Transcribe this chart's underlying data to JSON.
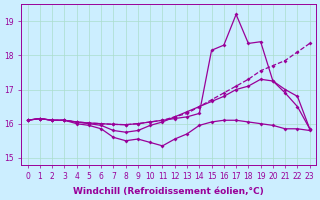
{
  "xlabel": "Windchill (Refroidissement éolien,°C)",
  "ylabel": "",
  "background_color": "#cceeff",
  "line_color": "#990099",
  "grid_color": "#aaddcc",
  "xlim": [
    -0.5,
    23.5
  ],
  "ylim": [
    14.8,
    19.5
  ],
  "xticks": [
    0,
    1,
    2,
    3,
    4,
    5,
    6,
    7,
    8,
    9,
    10,
    11,
    12,
    13,
    14,
    15,
    16,
    17,
    18,
    19,
    20,
    21,
    22,
    23
  ],
  "yticks": [
    15,
    16,
    17,
    18,
    19
  ],
  "line1_x": [
    0,
    1,
    2,
    3,
    4,
    5,
    6,
    7,
    8,
    9,
    10,
    11,
    12,
    13,
    14,
    15,
    16,
    17,
    18,
    19,
    20,
    21,
    22,
    23
  ],
  "line1_y": [
    16.1,
    16.15,
    16.1,
    16.1,
    16.0,
    15.95,
    15.85,
    15.6,
    15.5,
    15.55,
    15.45,
    15.35,
    15.55,
    15.7,
    15.95,
    16.05,
    16.1,
    16.1,
    16.05,
    16.0,
    15.95,
    15.85,
    15.85,
    15.8
  ],
  "line2_x": [
    0,
    1,
    2,
    3,
    4,
    5,
    6,
    7,
    8,
    9,
    10,
    11,
    12,
    13,
    14,
    15,
    16,
    17,
    18,
    19,
    20,
    21,
    22,
    23
  ],
  "line2_y": [
    16.1,
    16.15,
    16.1,
    16.1,
    16.05,
    16.0,
    15.95,
    15.8,
    15.75,
    15.8,
    15.95,
    16.05,
    16.2,
    16.35,
    16.5,
    16.65,
    16.8,
    17.0,
    17.1,
    17.3,
    17.25,
    17.0,
    16.8,
    15.85
  ],
  "line3_x": [
    0,
    1,
    2,
    3,
    4,
    5,
    6,
    7,
    8,
    9,
    10,
    11,
    12,
    13,
    14,
    15,
    16,
    17,
    18,
    19,
    20,
    21,
    22,
    23
  ],
  "line3_y": [
    16.1,
    16.15,
    16.1,
    16.1,
    16.05,
    16.02,
    16.0,
    15.98,
    15.97,
    16.0,
    16.05,
    16.1,
    16.2,
    16.3,
    16.5,
    16.7,
    16.9,
    17.1,
    17.3,
    17.55,
    17.7,
    17.85,
    18.1,
    18.35
  ],
  "line4_x": [
    0,
    1,
    2,
    3,
    4,
    5,
    6,
    7,
    8,
    9,
    10,
    11,
    12,
    13,
    14,
    15,
    16,
    17,
    18,
    19,
    20,
    21,
    22,
    23
  ],
  "line4_y": [
    16.1,
    16.15,
    16.1,
    16.1,
    16.05,
    16.02,
    16.0,
    15.98,
    15.97,
    16.0,
    16.05,
    16.1,
    16.15,
    16.2,
    16.3,
    18.15,
    18.3,
    19.2,
    18.35,
    18.4,
    17.25,
    16.9,
    16.5,
    15.85
  ],
  "marker": "D",
  "markersize": 2.0,
  "linewidth": 0.9,
  "tick_fontsize": 5.5,
  "label_fontsize": 6.5
}
